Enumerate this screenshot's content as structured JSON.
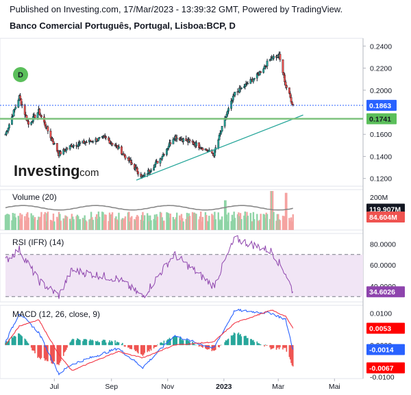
{
  "header": {
    "published": "Published on Investing.com, 17/Mar/2023 - 13:39:32 GMT, Powered by TradingView.",
    "symbol_title": "Banco Comercial Português, Portugal, Lisboa:BCP, D"
  },
  "brand": {
    "logo_main": "Investing",
    "logo_suffix": ".com",
    "interval_badge": "D"
  },
  "colors": {
    "up": "#26a69a",
    "down": "#ef5350",
    "green_tag": "#5bbf5b",
    "blue_tag": "#2962ff",
    "red_tag": "#ff0000",
    "rsi": "#8e44ad",
    "macd": "#2962ff",
    "signal": "#f23645"
  },
  "x_axis": {
    "ticks": [
      "Jul",
      "Sep",
      "Nov",
      "2023",
      "Mar",
      "Mai"
    ]
  },
  "chart_data": [
    {
      "type": "candlestick",
      "title": "Banco Comercial Português, Portugal, Lisboa:BCP, D",
      "y_ticks": [
        "0.2400",
        "0.2200",
        "0.2000",
        "0.1600",
        "0.1400",
        "0.1200"
      ],
      "ylim": [
        0.113,
        0.247
      ],
      "key_points": [
        {
          "x": "2022-05-09",
          "close": 0.16
        },
        {
          "x": "2022-05-24",
          "close": 0.194
        },
        {
          "x": "2022-06-03",
          "close": 0.169
        },
        {
          "x": "2022-06-14",
          "close": 0.181
        },
        {
          "x": "2022-07-06",
          "close": 0.142
        },
        {
          "x": "2022-07-20",
          "close": 0.15
        },
        {
          "x": "2022-08-25",
          "close": 0.157
        },
        {
          "x": "2022-09-08",
          "close": 0.148
        },
        {
          "x": "2022-10-05",
          "close": 0.121
        },
        {
          "x": "2022-10-24",
          "close": 0.138
        },
        {
          "x": "2022-11-08",
          "close": 0.158
        },
        {
          "x": "2022-12-02",
          "close": 0.151
        },
        {
          "x": "2022-12-21",
          "close": 0.142
        },
        {
          "x": "2023-01-03",
          "close": 0.176
        },
        {
          "x": "2023-01-13",
          "close": 0.197
        },
        {
          "x": "2023-02-06",
          "close": 0.213
        },
        {
          "x": "2023-02-22",
          "close": 0.23
        },
        {
          "x": "2023-03-02",
          "close": 0.231
        },
        {
          "x": "2023-03-09",
          "close": 0.205
        },
        {
          "x": "2023-03-17",
          "close": 0.1863
        }
      ],
      "price_tag": "0.1863",
      "support_tag": "0.1741",
      "support_level": 0.1741,
      "trendline": [
        {
          "x": "2022-09-28",
          "y": 0.1185
        },
        {
          "x": "2023-03-28",
          "y": 0.1775
        }
      ]
    },
    {
      "type": "bar",
      "label": "Volume (20)",
      "y_ticks": [
        "200M"
      ],
      "ylim": [
        0,
        210
      ],
      "avg_tag": "119.907M",
      "last_tag": "84.604M",
      "avg_level": 119.9,
      "last_value": 84.6,
      "peaks": [
        {
          "x": "2023-01-02",
          "value": 160
        },
        {
          "x": "2023-02-22",
          "value": 210
        },
        {
          "x": "2023-03-10",
          "value": 200
        }
      ]
    },
    {
      "type": "line",
      "label": "RSI (IFR) (14)",
      "y_ticks": [
        "80.0000",
        "60.0000",
        "40.0000"
      ],
      "ylim": [
        25,
        90
      ],
      "band": [
        30,
        70
      ],
      "last_tag": "34.6026",
      "key_points": [
        {
          "x": "2022-05-09",
          "value": 64
        },
        {
          "x": "2022-05-24",
          "value": 75
        },
        {
          "x": "2022-06-14",
          "value": 45
        },
        {
          "x": "2022-07-06",
          "value": 31
        },
        {
          "x": "2022-07-20",
          "value": 55
        },
        {
          "x": "2022-09-08",
          "value": 47
        },
        {
          "x": "2022-10-05",
          "value": 30
        },
        {
          "x": "2022-11-08",
          "value": 70
        },
        {
          "x": "2022-12-21",
          "value": 40
        },
        {
          "x": "2023-01-13",
          "value": 85
        },
        {
          "x": "2023-02-22",
          "value": 73
        },
        {
          "x": "2023-03-09",
          "value": 52
        },
        {
          "x": "2023-03-17",
          "value": 34.6
        }
      ]
    },
    {
      "type": "line",
      "label": "MACD (12, 26, close, 9)",
      "y_ticks": [
        "0.0100",
        "0.0000",
        "-0.0100"
      ],
      "ylim": [
        -0.0105,
        0.0125
      ],
      "macd_tag": "-0.0014",
      "signal_tag": "0.0053",
      "hist_tag": "-0.0067",
      "macd_points": [
        {
          "x": "2022-05-09",
          "value": 0.001
        },
        {
          "x": "2022-05-24",
          "value": 0.01
        },
        {
          "x": "2022-06-14",
          "value": 0.004
        },
        {
          "x": "2022-07-06",
          "value": -0.009
        },
        {
          "x": "2022-07-20",
          "value": -0.006
        },
        {
          "x": "2022-09-08",
          "value": -0.001
        },
        {
          "x": "2022-10-05",
          "value": -0.007
        },
        {
          "x": "2022-11-08",
          "value": 0.003
        },
        {
          "x": "2022-12-21",
          "value": -0.001
        },
        {
          "x": "2023-01-13",
          "value": 0.011
        },
        {
          "x": "2023-02-22",
          "value": 0.01
        },
        {
          "x": "2023-03-09",
          "value": 0.008
        },
        {
          "x": "2023-03-17",
          "value": -0.0014
        }
      ],
      "signal_points": [
        {
          "x": "2022-05-09",
          "value": 0.0
        },
        {
          "x": "2022-05-24",
          "value": 0.006
        },
        {
          "x": "2022-06-14",
          "value": 0.008
        },
        {
          "x": "2022-07-06",
          "value": -0.003
        },
        {
          "x": "2022-07-20",
          "value": -0.008
        },
        {
          "x": "2022-09-08",
          "value": -0.002
        },
        {
          "x": "2022-10-05",
          "value": -0.004
        },
        {
          "x": "2022-11-08",
          "value": 0.0
        },
        {
          "x": "2022-12-21",
          "value": 0.001
        },
        {
          "x": "2023-01-13",
          "value": 0.007
        },
        {
          "x": "2023-02-22",
          "value": 0.011
        },
        {
          "x": "2023-03-09",
          "value": 0.009
        },
        {
          "x": "2023-03-17",
          "value": 0.0053
        }
      ]
    }
  ]
}
